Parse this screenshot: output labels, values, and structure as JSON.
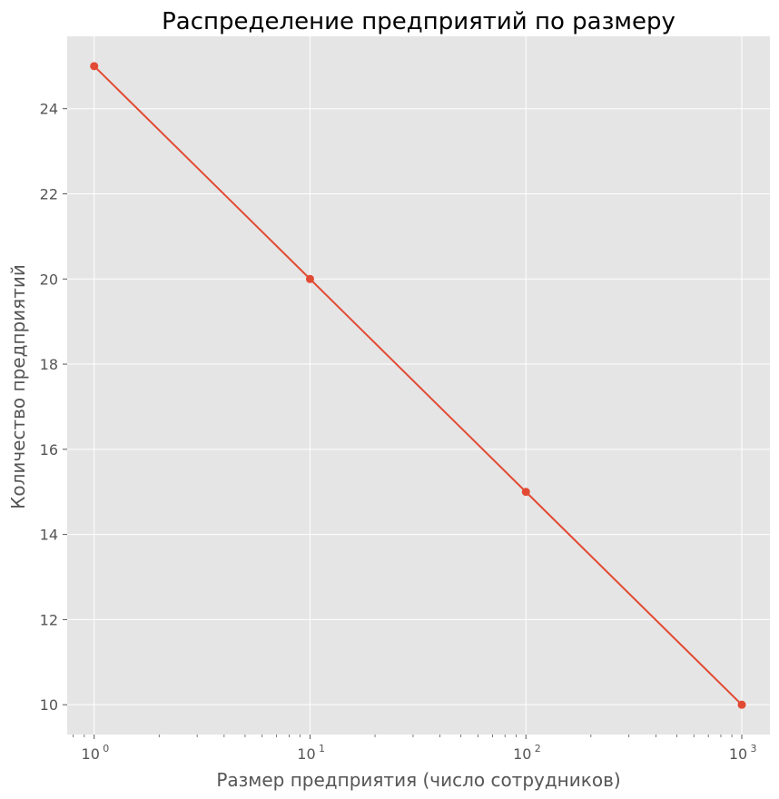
{
  "chart_data": {
    "type": "line",
    "title": "Распределение предприятий по размеру",
    "xlabel": "Размер предприятия (число сотрудников)",
    "ylabel": "Количество предприятий",
    "x_scale": "log",
    "xlim": [
      0.75,
      1350
    ],
    "ylim": [
      9.3,
      25.7
    ],
    "grid": true,
    "x_ticks": [
      {
        "value": 1,
        "base": "10",
        "exp": "0"
      },
      {
        "value": 10,
        "base": "10",
        "exp": "1"
      },
      {
        "value": 100,
        "base": "10",
        "exp": "2"
      },
      {
        "value": 1000,
        "base": "10",
        "exp": "3"
      }
    ],
    "y_ticks": [
      10,
      12,
      14,
      16,
      18,
      20,
      22,
      24
    ],
    "series": [
      {
        "x": [
          1,
          10,
          100,
          1000
        ],
        "y": [
          25,
          20,
          15,
          10
        ],
        "color": "#E24A33",
        "marker": "circle"
      }
    ],
    "colors": {
      "plot_bg": "#E5E5E5",
      "grid": "#FFFFFF",
      "line": "#E24A33"
    }
  }
}
